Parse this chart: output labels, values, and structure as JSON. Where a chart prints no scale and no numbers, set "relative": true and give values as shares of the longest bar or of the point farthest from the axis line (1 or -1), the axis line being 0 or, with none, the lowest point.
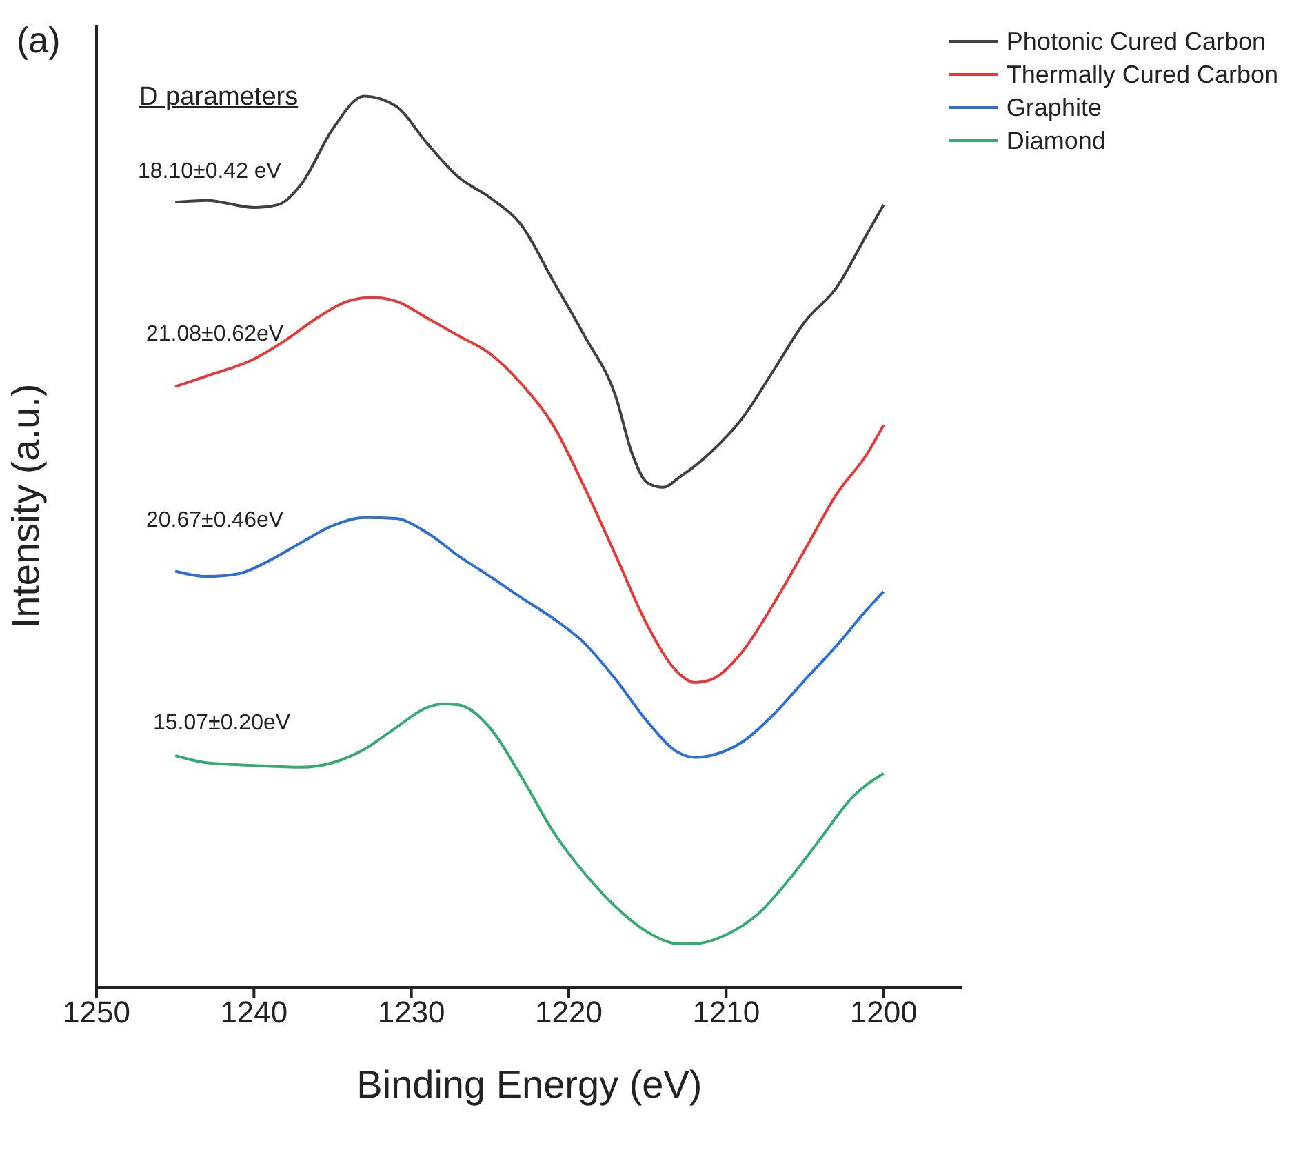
{
  "chart_data": {
    "type": "line",
    "xlabel": "Binding Energy (eV)",
    "ylabel": "Intensity (a.u.)",
    "relative": true,
    "xlim": [
      1250,
      1195
    ],
    "xticks": [
      1250,
      1240,
      1230,
      1220,
      1210,
      1200
    ],
    "legend": "top right",
    "grid": false,
    "marker": "none",
    "line_style": "solid",
    "annotations": [
      "(a)",
      "D parameters",
      "18.10±0.42 eV",
      "21.08±0.62eV",
      "20.67±0.46eV",
      "15.07±0.20eV"
    ],
    "series": [
      {
        "name": "Photonic Cured Carbon",
        "color": "#404040",
        "x": [
          1245,
          1243,
          1240,
          1238.5,
          1237,
          1235,
          1233,
          1231,
          1229,
          1227,
          1225,
          1223,
          1221,
          1219,
          1217,
          1216,
          1215,
          1214,
          1213,
          1211,
          1209,
          1207,
          1205,
          1203,
          1201,
          1200
        ],
        "values": [
          0.881,
          0.883,
          0.875,
          0.878,
          0.901,
          0.963,
          1,
          0.989,
          0.947,
          0.909,
          0.886,
          0.855,
          0.793,
          0.731,
          0.662,
          0.6,
          0.566,
          0.561,
          0.572,
          0.6,
          0.638,
          0.692,
          0.747,
          0.785,
          0.847,
          0.878
        ]
      },
      {
        "name": "Thermally Cured Carbon",
        "color": "#e03c3c",
        "x": [
          1245,
          1243,
          1240,
          1238,
          1236,
          1234,
          1232.5,
          1231,
          1229,
          1227,
          1225,
          1223,
          1221,
          1219,
          1217,
          1215,
          1213,
          1212,
          1211,
          1209,
          1207,
          1205,
          1203,
          1201,
          1200
        ],
        "values": [
          0.674,
          0.686,
          0.705,
          0.726,
          0.751,
          0.77,
          0.774,
          0.77,
          0.751,
          0.731,
          0.711,
          0.677,
          0.631,
          0.561,
          0.484,
          0.406,
          0.352,
          0.342,
          0.345,
          0.376,
          0.43,
          0.491,
          0.553,
          0.6,
          0.631
        ]
      },
      {
        "name": "Graphite",
        "color": "#2f6fd0",
        "x": [
          1245,
          1243,
          1241,
          1239,
          1237,
          1235,
          1233,
          1231,
          1229,
          1227,
          1225,
          1223,
          1221,
          1219,
          1217,
          1215,
          1213,
          1212,
          1211,
          1209,
          1207,
          1205,
          1203,
          1201,
          1200
        ],
        "values": [
          0.467,
          0.461,
          0.464,
          0.479,
          0.499,
          0.518,
          0.527,
          0.526,
          0.51,
          0.484,
          0.461,
          0.437,
          0.414,
          0.386,
          0.345,
          0.298,
          0.263,
          0.258,
          0.26,
          0.275,
          0.306,
          0.345,
          0.383,
          0.425,
          0.444
        ]
      },
      {
        "name": "Diamond",
        "color": "#3aa874",
        "x": [
          1245,
          1243,
          1240,
          1237,
          1235,
          1233,
          1231,
          1229,
          1228,
          1227,
          1225,
          1223,
          1221,
          1219,
          1217,
          1215,
          1213,
          1212,
          1210,
          1208,
          1206,
          1204,
          1202,
          1200
        ],
        "values": [
          0.26,
          0.252,
          0.249,
          0.247,
          0.252,
          0.267,
          0.291,
          0.314,
          0.318,
          0.317,
          0.291,
          0.236,
          0.175,
          0.128,
          0.09,
          0.062,
          0.049,
          0.049,
          0.059,
          0.082,
          0.121,
          0.167,
          0.213,
          0.24
        ]
      }
    ]
  }
}
